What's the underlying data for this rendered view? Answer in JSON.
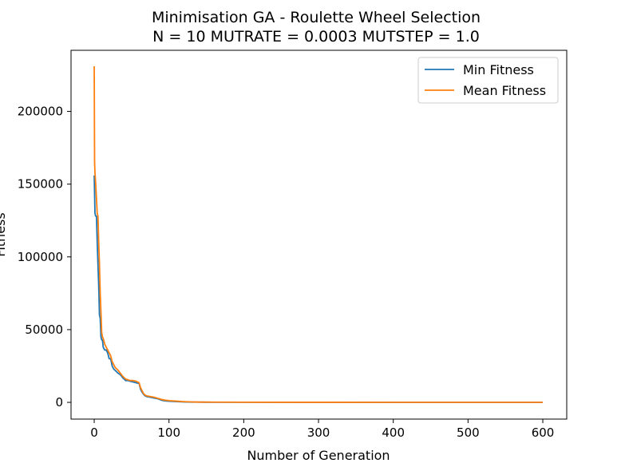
{
  "chart_data": {
    "type": "line",
    "title": "Minimisation GA - Roulette Wheel Selection",
    "subtitle": "N = 10 MUTRATE = 0.0003 MUTSTEP = 1.0",
    "xlabel": "Number of Generation",
    "ylabel": "Fitness",
    "xlim": [
      -31,
      632
    ],
    "ylim": [
      -11500,
      242000
    ],
    "xticks": [
      0,
      100,
      200,
      300,
      400,
      500,
      600
    ],
    "yticks": [
      0,
      50000,
      100000,
      150000,
      200000
    ],
    "grid": false,
    "legend_position": "top-right",
    "series": [
      {
        "name": "Min Fitness",
        "color": "#1f77b4",
        "x": [
          0,
          1,
          2,
          3,
          4,
          5,
          6,
          7,
          8,
          9,
          10,
          11,
          12,
          14,
          16,
          18,
          20,
          22,
          24,
          26,
          28,
          30,
          32,
          35,
          38,
          42,
          45,
          48,
          52,
          56,
          60,
          62,
          64,
          66,
          68,
          70,
          75,
          80,
          85,
          90,
          95,
          100,
          110,
          120,
          130,
          140,
          160,
          200,
          300,
          400,
          500,
          600
        ],
        "y": [
          156000,
          130000,
          128000,
          128000,
          110000,
          95000,
          80000,
          60000,
          58000,
          45000,
          43000,
          43000,
          38000,
          36000,
          36000,
          34000,
          30000,
          30000,
          25000,
          23000,
          22000,
          21000,
          20000,
          19000,
          17000,
          15000,
          15000,
          14500,
          14000,
          13500,
          13000,
          9000,
          7000,
          5500,
          4500,
          4000,
          3500,
          3000,
          2500,
          1500,
          1000,
          800,
          500,
          300,
          200,
          150,
          100,
          80,
          50,
          30,
          20,
          10
        ]
      },
      {
        "name": "Mean Fitness",
        "color": "#ff7f0e",
        "x": [
          0,
          0.5,
          1,
          2,
          3,
          4,
          5,
          6,
          7,
          8,
          9,
          10,
          11,
          12,
          14,
          16,
          18,
          20,
          22,
          24,
          26,
          28,
          30,
          32,
          35,
          38,
          42,
          45,
          48,
          52,
          56,
          60,
          62,
          64,
          66,
          68,
          70,
          75,
          80,
          85,
          90,
          95,
          100,
          110,
          120,
          130,
          140,
          160,
          200,
          300,
          400,
          500,
          600
        ],
        "y": [
          231000,
          165000,
          158000,
          150000,
          140000,
          130000,
          128000,
          110000,
          95000,
          75000,
          62000,
          48000,
          45000,
          44000,
          40000,
          38000,
          36000,
          34000,
          32000,
          28000,
          26000,
          24000,
          23000,
          22000,
          20000,
          18000,
          16000,
          15500,
          15000,
          15000,
          14500,
          13500,
          10000,
          8000,
          6000,
          5000,
          4500,
          4000,
          3500,
          2800,
          2000,
          1500,
          1200,
          800,
          500,
          300,
          200,
          150,
          100,
          60,
          40,
          30,
          20
        ]
      }
    ]
  }
}
